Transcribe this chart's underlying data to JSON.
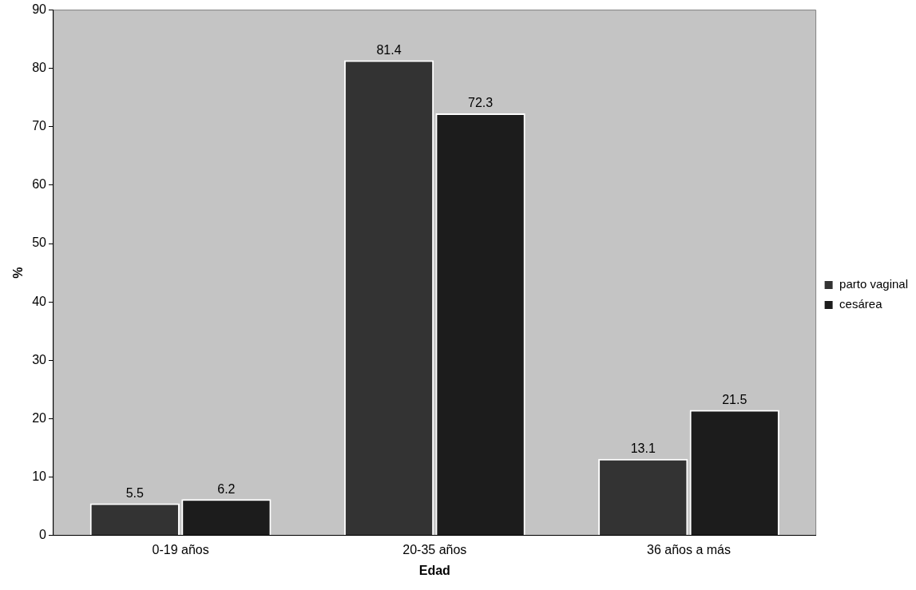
{
  "chart_data": {
    "type": "bar",
    "xlabel": "Edad",
    "ylabel": "%",
    "categories": [
      "0-19 años",
      "20-35 años",
      "36 años a más"
    ],
    "series": [
      {
        "name": "parto vaginal",
        "color": "#333333",
        "values": [
          5.5,
          81.4,
          13.1
        ]
      },
      {
        "name": "cesárea",
        "color": "#1c1c1c",
        "values": [
          6.2,
          72.3,
          21.5
        ]
      }
    ],
    "ylim": [
      0,
      90
    ],
    "yticks": [
      0,
      10,
      20,
      30,
      40,
      50,
      60,
      70,
      80,
      90
    ],
    "grid": false,
    "legend": "right",
    "data_labels": true
  }
}
